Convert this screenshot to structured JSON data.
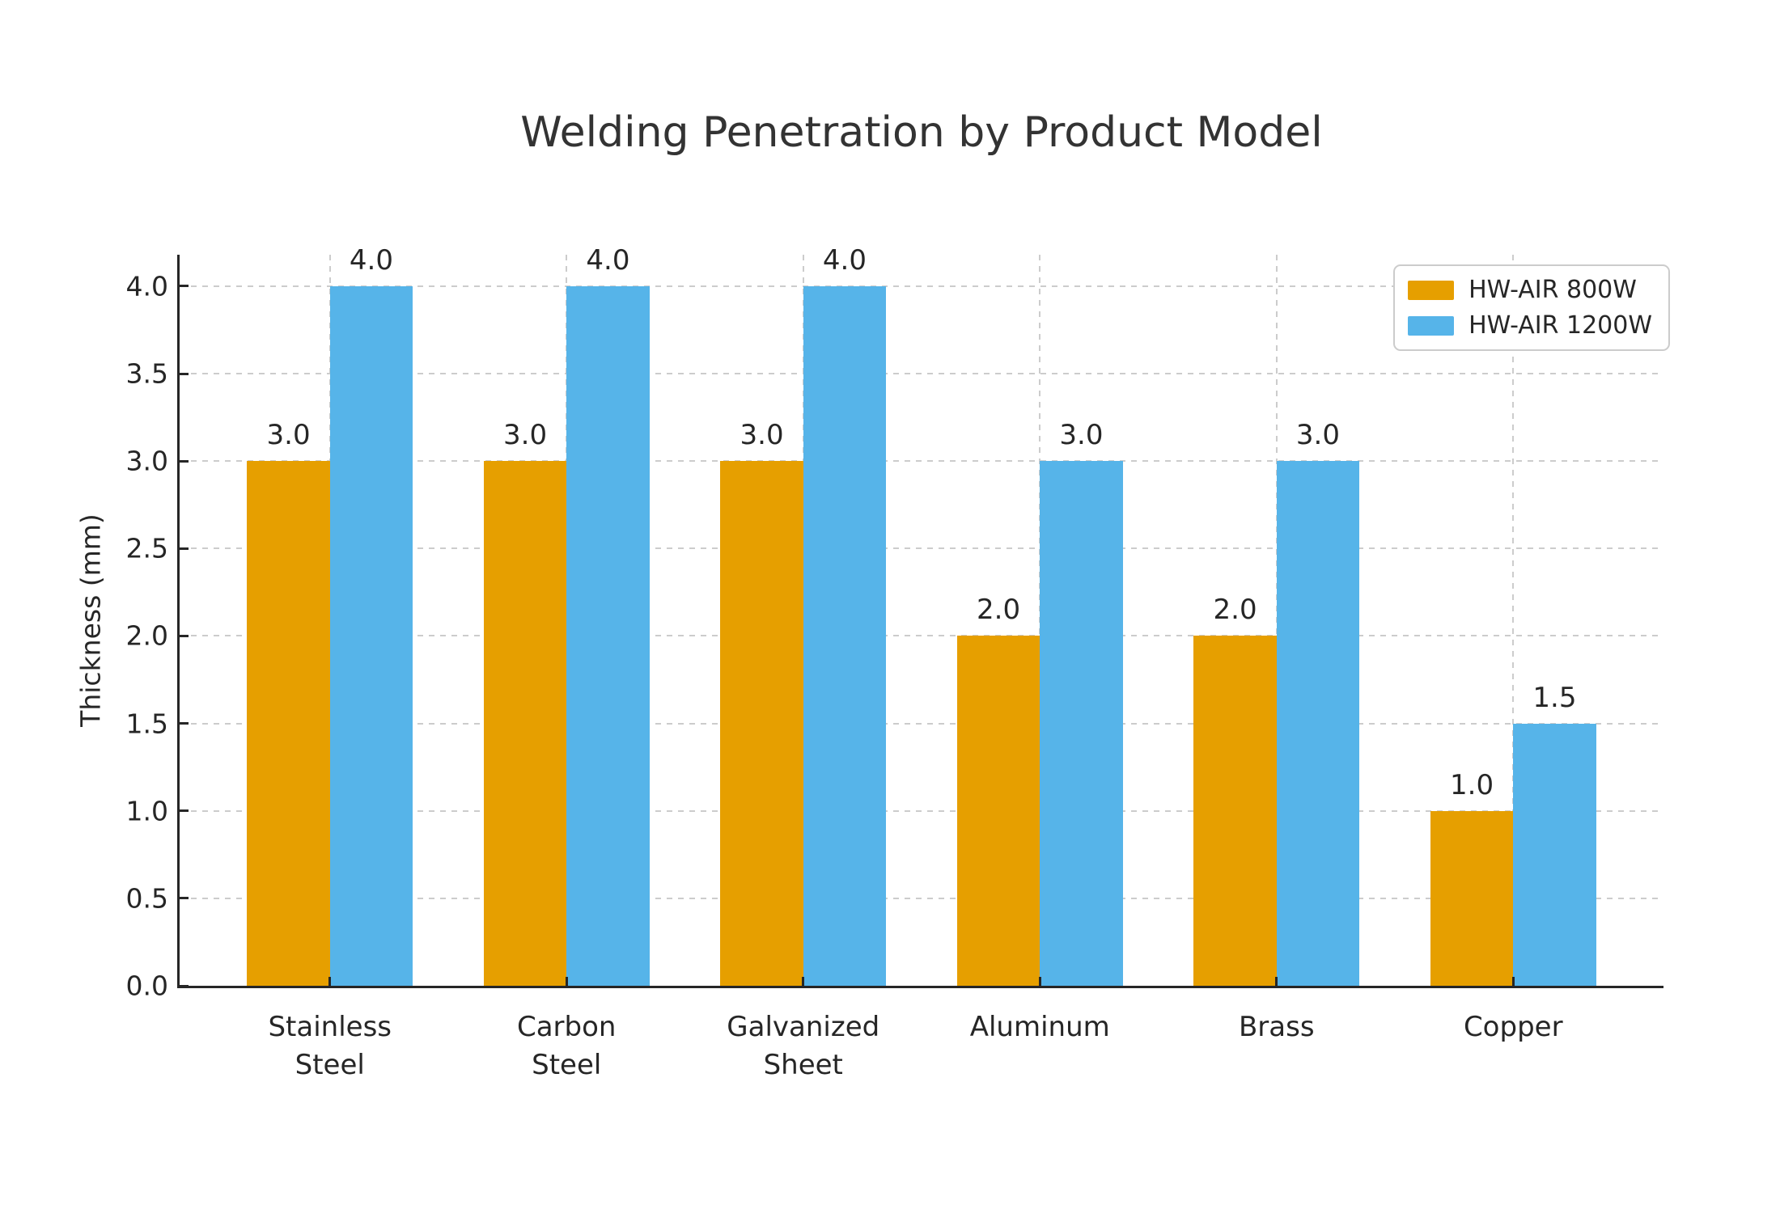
{
  "chart_data": {
    "type": "bar",
    "title": "Welding Penetration by Product Model",
    "xlabel": "",
    "ylabel": "Thickness (mm)",
    "categories": [
      "Stainless\nSteel",
      "Carbon\nSteel",
      "Galvanized\nSheet",
      "Aluminum",
      "Brass",
      "Copper"
    ],
    "series": [
      {
        "name": "HW-AIR 800W",
        "color": "#E69F00",
        "values": [
          3.0,
          3.0,
          3.0,
          2.0,
          2.0,
          1.0
        ],
        "value_labels": [
          "3.0",
          "3.0",
          "3.0",
          "2.0",
          "2.0",
          "1.0"
        ]
      },
      {
        "name": "HW-AIR 1200W",
        "color": "#56B4E9",
        "values": [
          4.0,
          4.0,
          4.0,
          3.0,
          3.0,
          1.5
        ],
        "value_labels": [
          "4.0",
          "4.0",
          "4.0",
          "3.0",
          "3.0",
          "1.5"
        ]
      }
    ],
    "yticks": {
      "values": [
        0.0,
        0.5,
        1.0,
        1.5,
        2.0,
        2.5,
        3.0,
        3.5,
        4.0
      ],
      "labels": [
        "0.0",
        "0.5",
        "1.0",
        "1.5",
        "2.0",
        "2.5",
        "3.0",
        "3.5",
        "4.0"
      ]
    },
    "ylim": [
      0,
      4.18
    ],
    "grid": {
      "horizontal": true,
      "vertical": true,
      "style": "dashed",
      "color": "#cccccc"
    },
    "legend": {
      "position": "upper right"
    },
    "colors": {
      "axis": "#262626",
      "title_text": "#333333",
      "background": "#ffffff"
    }
  }
}
